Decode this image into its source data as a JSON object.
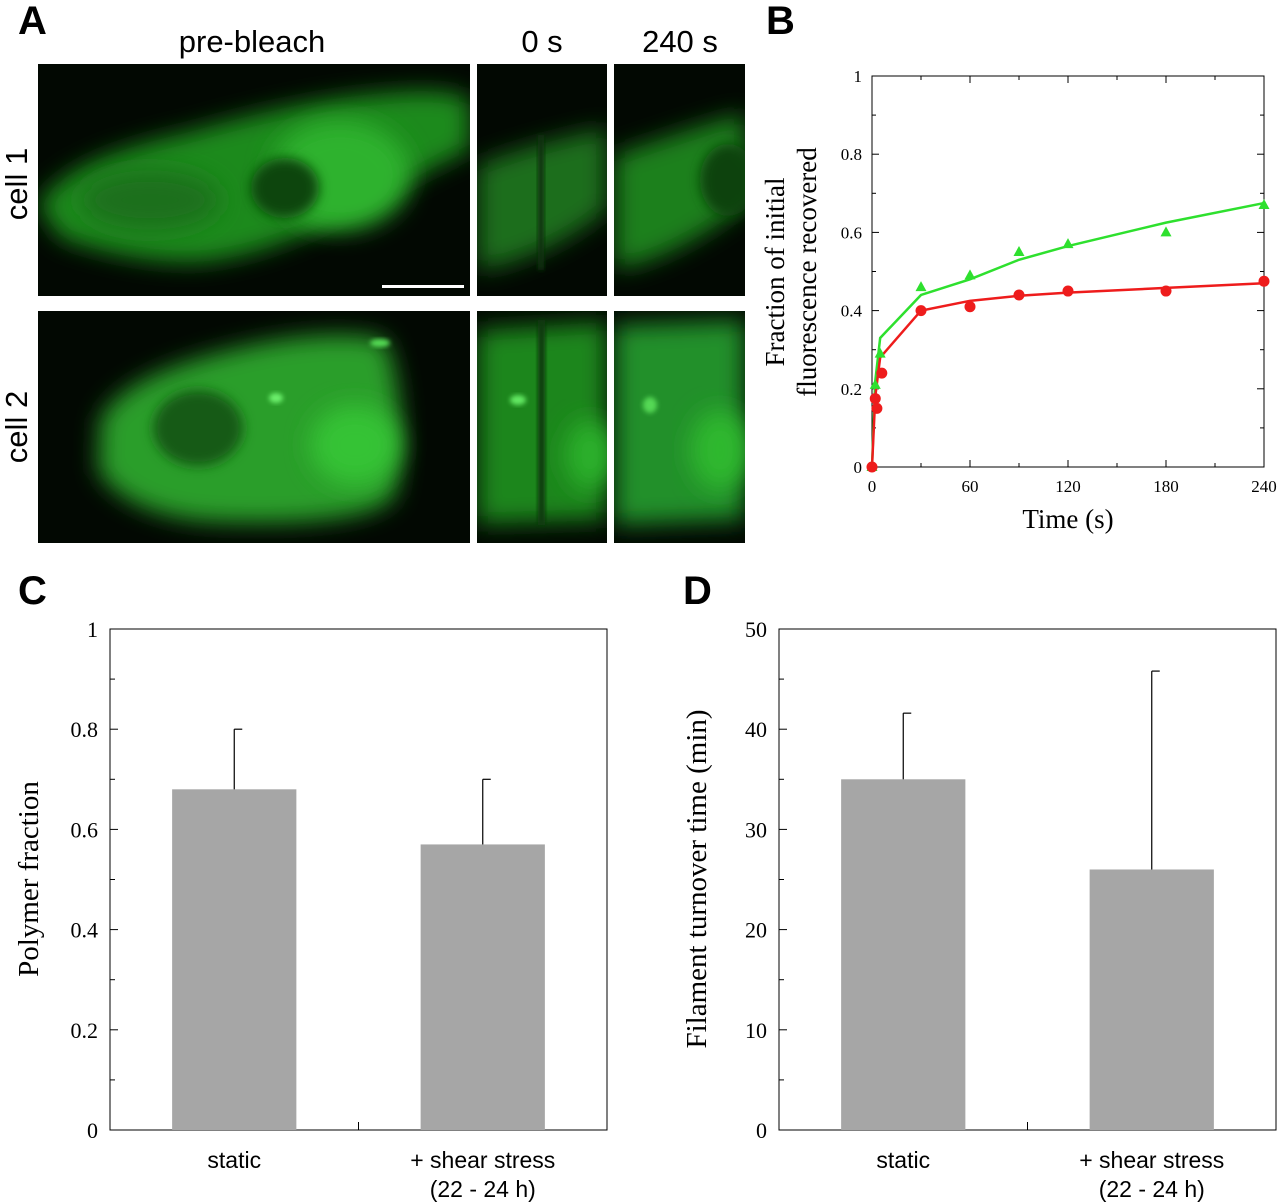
{
  "panels": {
    "A": {
      "letter": "A",
      "col_headers": [
        "pre-bleach",
        "0 s",
        "240 s"
      ],
      "row_labels": [
        "cell 1",
        "cell 2"
      ]
    },
    "B": {
      "letter": "B"
    },
    "C": {
      "letter": "C"
    },
    "D": {
      "letter": "D"
    }
  },
  "chart_data": [
    {
      "id": "B",
      "type": "scatter",
      "title": "",
      "xlabel": "Time (s)",
      "ylabel_lines": [
        "Fraction of initial",
        "fluorescence recovered"
      ],
      "xlim": [
        0,
        240
      ],
      "ylim": [
        0,
        1
      ],
      "xticks": [
        0,
        60,
        120,
        180,
        240
      ],
      "yticks": [
        0,
        0.2,
        0.4,
        0.6,
        0.8,
        1
      ],
      "ytick_labels": [
        "0",
        "0.2",
        "0.4",
        "0.6",
        "0.8",
        "1"
      ],
      "grid": false,
      "legend": "none",
      "series": [
        {
          "color": "#2ee02e",
          "marker": "triangle",
          "points": [
            [
              0,
              0.0
            ],
            [
              2,
              0.21
            ],
            [
              5,
              0.29
            ],
            [
              30,
              0.46
            ],
            [
              60,
              0.49
            ],
            [
              90,
              0.55
            ],
            [
              120,
              0.57
            ],
            [
              180,
              0.6
            ],
            [
              240,
              0.67
            ]
          ],
          "fit": [
            [
              0,
              0.0
            ],
            [
              2,
              0.22
            ],
            [
              5,
              0.33
            ],
            [
              30,
              0.44
            ],
            [
              60,
              0.48
            ],
            [
              90,
              0.53
            ],
            [
              120,
              0.565
            ],
            [
              180,
              0.625
            ],
            [
              240,
              0.675
            ]
          ]
        },
        {
          "color": "#ee1c1c",
          "marker": "circle",
          "points": [
            [
              0,
              0.0
            ],
            [
              2,
              0.175
            ],
            [
              3,
              0.15
            ],
            [
              6,
              0.24
            ],
            [
              30,
              0.4
            ],
            [
              60,
              0.41
            ],
            [
              90,
              0.44
            ],
            [
              120,
              0.45
            ],
            [
              180,
              0.45
            ],
            [
              240,
              0.475
            ]
          ],
          "fit": [
            [
              0,
              0.0
            ],
            [
              2,
              0.18
            ],
            [
              5,
              0.28
            ],
            [
              30,
              0.4
            ],
            [
              60,
              0.425
            ],
            [
              90,
              0.438
            ],
            [
              120,
              0.446
            ],
            [
              180,
              0.458
            ],
            [
              240,
              0.47
            ]
          ]
        }
      ]
    },
    {
      "id": "C",
      "type": "bar",
      "title": "",
      "ylabel": "Polymer fraction",
      "xlabel": "",
      "categories": [
        [
          "static"
        ],
        [
          "+ shear stress",
          "(22 - 24 h)"
        ]
      ],
      "values": [
        0.68,
        0.57
      ],
      "errors": [
        0.12,
        0.13
      ],
      "ylim": [
        0,
        1
      ],
      "yticks": [
        0,
        0.2,
        0.4,
        0.6,
        0.8,
        1
      ],
      "ytick_labels": [
        "0",
        "0.2",
        "0.4",
        "0.6",
        "0.8",
        "1"
      ],
      "bar_color": "#a6a6a6",
      "grid": false,
      "legend": "none"
    },
    {
      "id": "D",
      "type": "bar",
      "title": "",
      "ylabel": "Filament turnover time (min)",
      "xlabel": "",
      "categories": [
        [
          "static"
        ],
        [
          "+ shear stress",
          "(22 - 24 h)"
        ]
      ],
      "values": [
        35,
        26
      ],
      "errors": [
        6.6,
        19.8
      ],
      "ylim": [
        0,
        50
      ],
      "yticks": [
        0,
        10,
        20,
        30,
        40,
        50
      ],
      "ytick_labels": [
        "0",
        "10",
        "20",
        "30",
        "40",
        "50"
      ],
      "bar_color": "#a6a6a6",
      "grid": false,
      "legend": "none"
    }
  ]
}
